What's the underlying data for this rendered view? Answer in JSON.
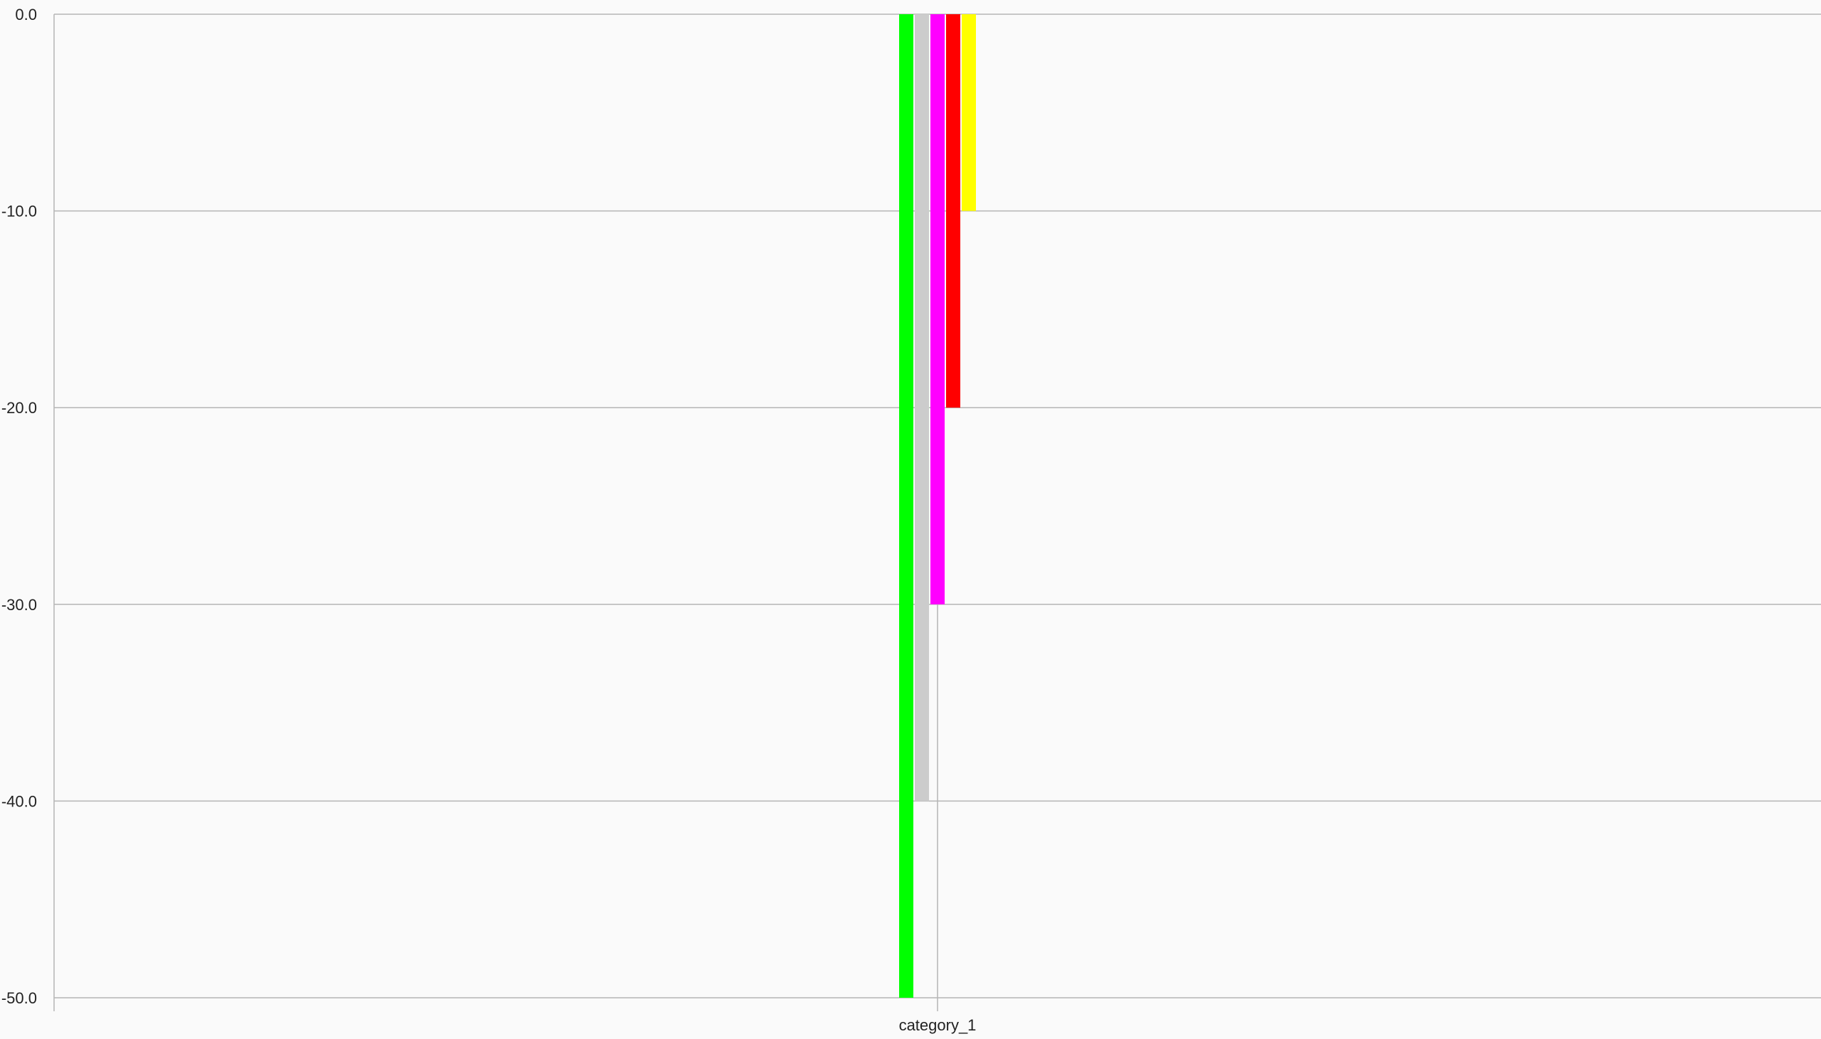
{
  "chart_data": {
    "type": "bar",
    "categories": [
      "category_1"
    ],
    "series": [
      {
        "values": [
          -50
        ],
        "color": "#00ff00"
      },
      {
        "values": [
          -40
        ],
        "color": "#cccccc"
      },
      {
        "values": [
          -30
        ],
        "color": "#ff00ff"
      },
      {
        "values": [
          -20
        ],
        "color": "#ff0000"
      },
      {
        "values": [
          -10
        ],
        "color": "#ffff00"
      }
    ],
    "ylim": [
      -50,
      0
    ],
    "yticks": [
      "0.0",
      "-10.0",
      "-20.0",
      "-30.0",
      "-40.0",
      "-50.0"
    ],
    "grid": true,
    "legend": "none",
    "colors": {
      "background": "#fafafa",
      "gridline": "#b5b5b5",
      "axis": "#b5b5b5",
      "text": "#222222"
    }
  }
}
